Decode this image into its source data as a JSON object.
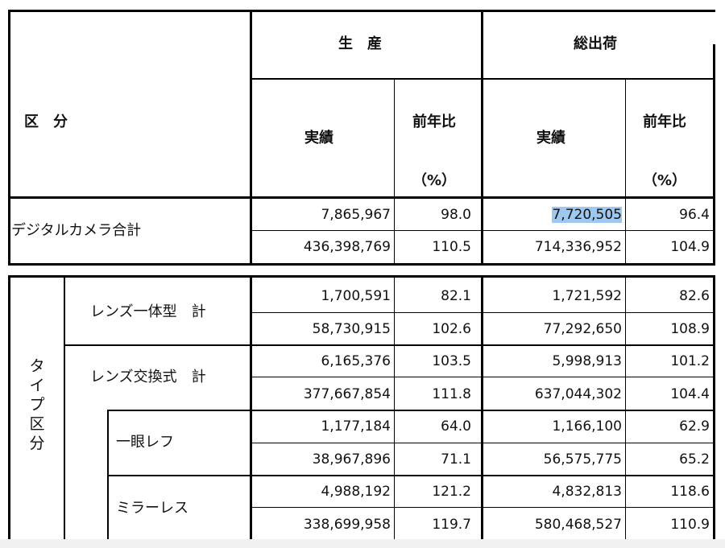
{
  "header": {
    "kubun": "区　分",
    "production": "生　産",
    "shipment": "総出荷",
    "actual": "実績",
    "yoy": "前年比",
    "pct": "（%）"
  },
  "total": {
    "label": "デジタルカメラ合計",
    "rows": [
      [
        "7,865,967",
        "98.0",
        "7,720,505",
        "96.4"
      ],
      [
        "436,398,769",
        "110.5",
        "714,336,952",
        "104.9"
      ]
    ]
  },
  "type_section": {
    "label": "タイプ区分",
    "label_chars": [
      "タ",
      "イ",
      "プ",
      "区",
      "分"
    ],
    "groups": [
      {
        "label": "レンズ一体型　計",
        "rows": [
          [
            "1,700,591",
            "82.1",
            "1,721,592",
            "82.6"
          ],
          [
            "58,730,915",
            "102.6",
            "77,292,650",
            "108.9"
          ]
        ]
      },
      {
        "label": "レンズ交換式　計",
        "rows": [
          [
            "6,165,376",
            "103.5",
            "5,998,913",
            "101.2"
          ],
          [
            "377,667,854",
            "111.8",
            "637,044,302",
            "104.4"
          ]
        ]
      },
      {
        "label": "一眼レフ",
        "rows": [
          [
            "1,177,184",
            "64.0",
            "1,166,100",
            "62.9"
          ],
          [
            "38,967,896",
            "71.1",
            "56,575,775",
            "65.2"
          ]
        ]
      },
      {
        "label": "ミラーレス",
        "rows": [
          [
            "4,988,192",
            "121.2",
            "4,832,813",
            "118.6"
          ],
          [
            "338,699,958",
            "119.7",
            "580,468,527",
            "110.9"
          ]
        ]
      }
    ]
  },
  "colors": {
    "highlight": "#9ec8f0"
  }
}
